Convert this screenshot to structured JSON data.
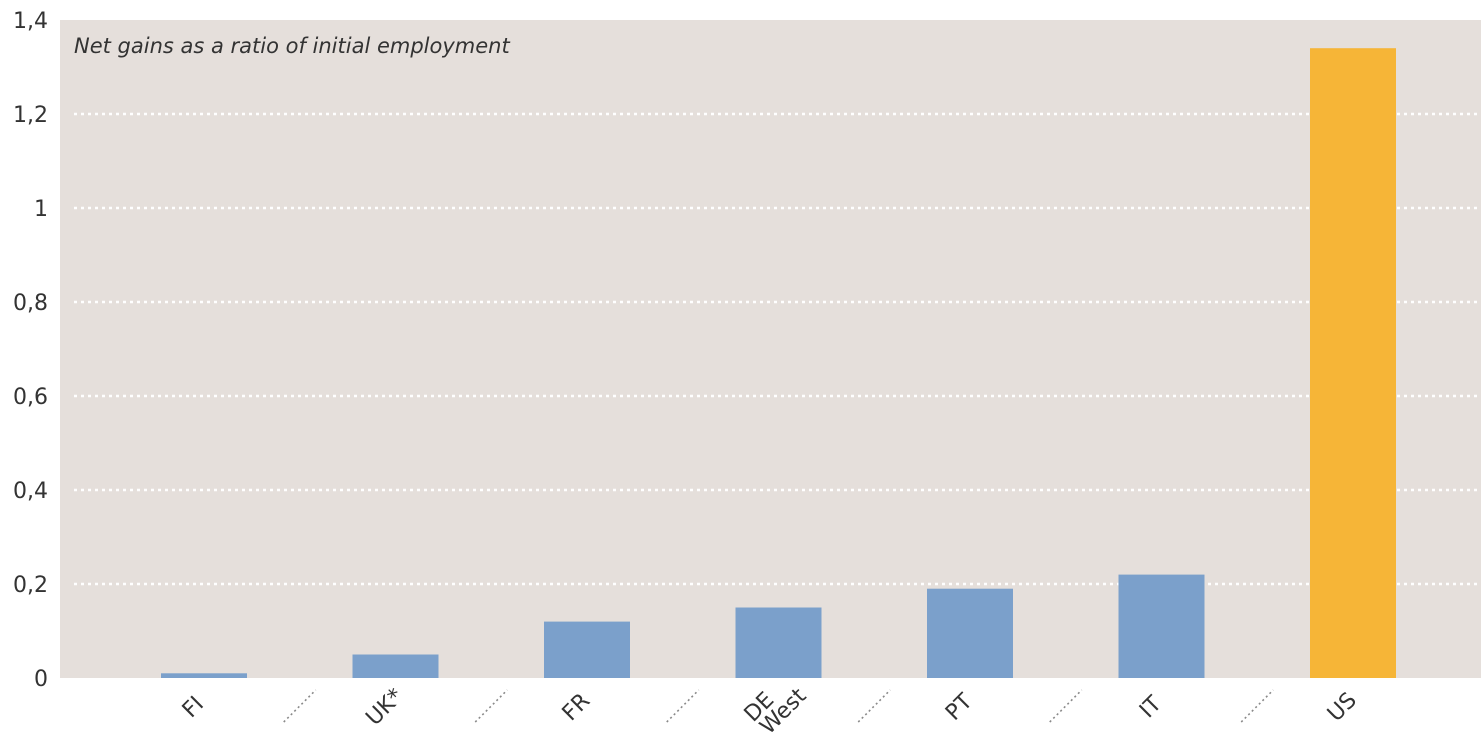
{
  "chart_data": {
    "type": "bar",
    "title": "Net gains as a ratio of initial employment",
    "categories": [
      "FI",
      "UK*",
      "FR",
      "DE West",
      "PT",
      "IT",
      "US"
    ],
    "category_lines": [
      [
        "FI"
      ],
      [
        "UK*"
      ],
      [
        "FR"
      ],
      [
        "DE",
        "West"
      ],
      [
        "PT"
      ],
      [
        "IT"
      ],
      [
        "US"
      ]
    ],
    "values": [
      0.01,
      0.05,
      0.12,
      0.15,
      0.19,
      0.22,
      1.34
    ],
    "ylim": [
      0,
      1.4
    ],
    "yticks": [
      0,
      0.2,
      0.4,
      0.6,
      0.8,
      1,
      1.2,
      1.4
    ],
    "ytick_labels": [
      "0",
      "0,2",
      "0,4",
      "0,6",
      "0,8",
      "1",
      "1,2",
      "1,4"
    ],
    "xlabel": "",
    "ylabel": "",
    "grid": true,
    "colors": {
      "background": "#e5dfdb",
      "bar": "#7ba0cb",
      "highlight_bar": "#f6b537",
      "grid": "#ffffff"
    },
    "highlight_category": "US"
  }
}
